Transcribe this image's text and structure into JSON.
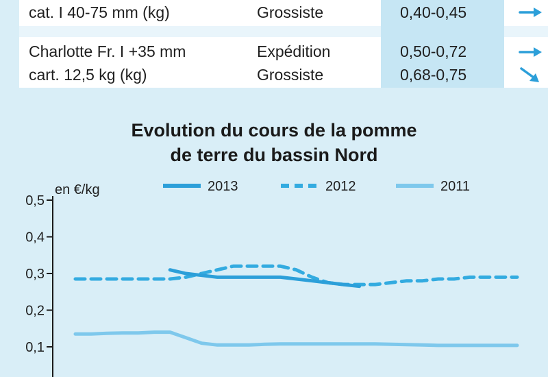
{
  "table": {
    "rows": [
      {
        "product_lines": [
          "cat. I 40-75 mm (kg)"
        ],
        "stages": [
          "Grossiste"
        ],
        "prices": [
          "0,40-0,45"
        ],
        "trends": [
          "right"
        ]
      },
      {
        "product_lines": [
          "Charlotte Fr. I +35 mm",
          "cart. 12,5 kg (kg)"
        ],
        "stages": [
          "Expédition",
          "Grossiste"
        ],
        "prices": [
          "0,50-0,72",
          "0,68-0,75"
        ],
        "trends": [
          "right",
          "down-right"
        ]
      }
    ]
  },
  "colors": {
    "s2013": "#2c9fd9",
    "s2012": "#33abe0",
    "s2011": "#7ec8ec",
    "axis": "#1a1a1a"
  },
  "chart_data": {
    "type": "line",
    "title_lines": [
      "Evolution du cours de la pomme",
      "de terre du bassin Nord"
    ],
    "ylabel": "en €/kg",
    "ylim": [
      0,
      0.5
    ],
    "yticks": [
      "0,5",
      "0,4",
      "0,3",
      "0,2",
      "0,1"
    ],
    "ytick_values": [
      0.5,
      0.4,
      0.3,
      0.2,
      0.1
    ],
    "x": [
      1,
      2,
      3,
      4,
      5,
      6,
      7,
      8,
      9,
      10,
      11,
      12,
      13,
      14,
      15,
      16,
      17,
      18,
      19,
      20,
      21,
      22,
      23,
      24,
      25,
      26,
      27,
      28,
      29
    ],
    "series": [
      {
        "name": "2013",
        "style": "solid",
        "values": [
          null,
          null,
          null,
          null,
          null,
          null,
          0.31,
          0.3,
          0.295,
          0.29,
          0.29,
          0.29,
          0.29,
          0.29,
          0.285,
          0.28,
          0.275,
          0.27,
          0.265,
          null,
          null,
          null,
          null,
          null,
          null,
          null,
          null,
          null,
          null
        ]
      },
      {
        "name": "2012",
        "style": "dashed",
        "values": [
          0.285,
          0.285,
          0.285,
          0.285,
          0.285,
          0.285,
          0.285,
          0.29,
          0.3,
          0.31,
          0.32,
          0.32,
          0.32,
          0.32,
          0.31,
          0.29,
          0.275,
          0.27,
          0.27,
          0.27,
          0.275,
          0.28,
          0.28,
          0.285,
          0.285,
          0.29,
          0.29,
          0.29,
          0.29
        ]
      },
      {
        "name": "2011",
        "style": "solid-light",
        "values": [
          0.135,
          0.135,
          0.137,
          0.138,
          0.138,
          0.14,
          0.14,
          0.125,
          0.11,
          0.105,
          0.105,
          0.105,
          0.107,
          0.108,
          0.108,
          0.108,
          0.108,
          0.108,
          0.108,
          0.108,
          0.107,
          0.106,
          0.105,
          0.104,
          0.104,
          0.104,
          0.104,
          0.104,
          0.104
        ]
      }
    ]
  }
}
